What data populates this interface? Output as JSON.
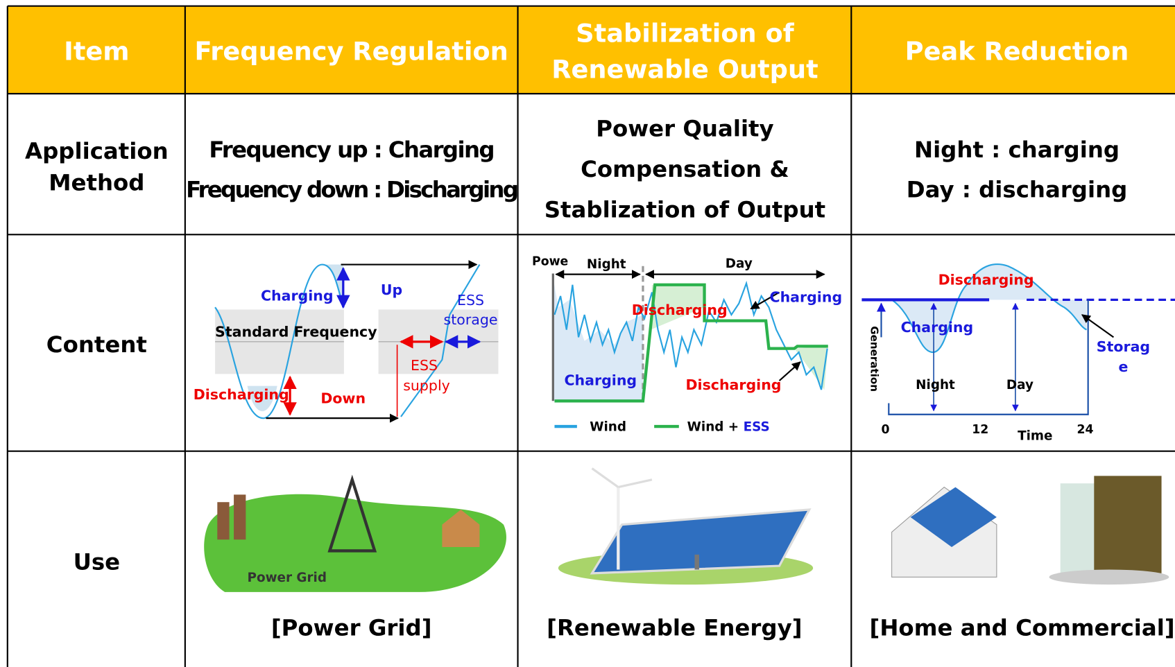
{
  "table": {
    "header": [
      [
        "Item"
      ],
      [
        "Frequency Regulation"
      ],
      [
        "Stabilization of",
        "Renewable Output"
      ],
      [
        "Peak Reduction"
      ]
    ],
    "rows": [
      {
        "label": [
          "Application",
          "Method"
        ],
        "cells": [
          [
            "Frequency up : Charging",
            "Frequency down : Discharging"
          ],
          [
            "Power Quality",
            "Compensation &",
            "Stablization of Output"
          ],
          [
            "Night : charging",
            "Day : discharging"
          ]
        ]
      },
      {
        "label": [
          "Content"
        ],
        "diagrams": [
          {
            "charging": "Charging",
            "up": "Up",
            "ess_storage": [
              "ESS",
              "storage"
            ],
            "standard": "Standard Frequency",
            "ess_supply": [
              "ESS",
              "supply"
            ],
            "discharging": "Discharging",
            "down": "Down"
          },
          {
            "axis": "Powe",
            "night": "Night",
            "day": "Day",
            "charging_top": "Charging",
            "discharging_top": "Discharging",
            "charging_bottom": "Charging",
            "discharging_bottom": "Discharging",
            "legend_wind": "Wind",
            "legend_combo": "Wind + ",
            "legend_ess": "ESS"
          },
          {
            "discharging": "Discharging",
            "charging": "Charging",
            "axis": "Generation",
            "night": "Night",
            "day": "Day",
            "storage": [
              "Storag",
              "e"
            ],
            "ticks": [
              "0",
              "12",
              "24"
            ],
            "time": "Time"
          }
        ]
      },
      {
        "label": [
          "Use"
        ],
        "images": [
          {
            "text": "Power Grid",
            "caption": "[Power Grid]"
          },
          {
            "caption": "[Renewable Energy]"
          },
          {
            "caption": "[Home and Commercial]"
          }
        ]
      }
    ]
  }
}
